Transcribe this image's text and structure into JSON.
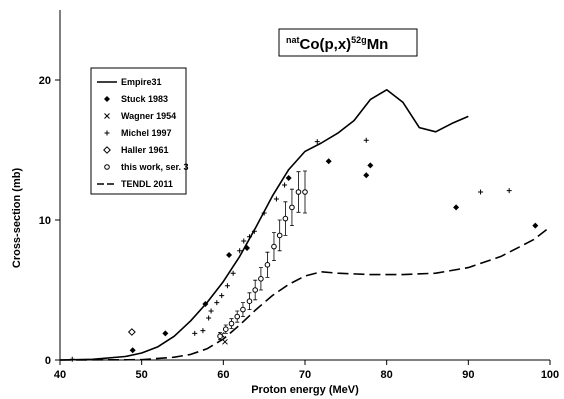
{
  "chart_data": {
    "type": "scatter",
    "title_prefix": "nat",
    "title_main1": "Co(p,x)",
    "title_sup2": "52g",
    "title_main2": "Mn",
    "xlabel": "Proton energy (MeV)",
    "ylabel": "Cross-section (mb)",
    "xlim": [
      40,
      100
    ],
    "ylim": [
      0,
      25
    ],
    "xticks": [
      40,
      50,
      60,
      70,
      80,
      90,
      100
    ],
    "yticks": [
      0,
      10,
      20
    ],
    "legend_position": "top-left",
    "series": [
      {
        "name": "Empire31",
        "style": "solid-line",
        "x": [
          40,
          44,
          48,
          50,
          52,
          54,
          56,
          58,
          60,
          62,
          64,
          66,
          68,
          70,
          72,
          74,
          76,
          78,
          80,
          82,
          84,
          86,
          88,
          90
        ],
        "y": [
          0.0,
          0.05,
          0.25,
          0.5,
          0.95,
          1.7,
          2.8,
          4.1,
          5.6,
          7.4,
          9.5,
          11.7,
          13.6,
          14.9,
          15.5,
          16.2,
          17.1,
          18.6,
          19.3,
          18.4,
          16.6,
          16.3,
          16.9,
          17.4
        ]
      },
      {
        "name": "TENDL 2011",
        "style": "dashed-line",
        "x": [
          40,
          50,
          54,
          56,
          58,
          60,
          62,
          64,
          66,
          68,
          70,
          72,
          74,
          78,
          82,
          86,
          90,
          94,
          98,
          100
        ],
        "y": [
          0.0,
          0.02,
          0.2,
          0.4,
          0.8,
          1.5,
          2.5,
          3.6,
          4.6,
          5.4,
          6.0,
          6.3,
          6.2,
          6.1,
          6.1,
          6.2,
          6.6,
          7.4,
          8.6,
          9.5
        ]
      },
      {
        "name": "Stuck 1983",
        "marker": "diamond-filled",
        "x": [
          48.9,
          52.9,
          57.8,
          60.7,
          62.9,
          68.0,
          72.9,
          77.5,
          78.0,
          88.5,
          98.2
        ],
        "y": [
          0.7,
          1.9,
          4.0,
          7.5,
          8.0,
          13.0,
          14.2,
          13.2,
          13.9,
          10.9,
          9.6
        ]
      },
      {
        "name": "Wagner 1954",
        "marker": "cross-x",
        "x": [
          59.8,
          60.2
        ],
        "y": [
          1.8,
          1.3
        ]
      },
      {
        "name": "Michel 1997",
        "marker": "plus",
        "x": [
          41.5,
          56.5,
          57.5,
          58.2,
          58.5,
          59.2,
          59.8,
          60.5,
          61.2,
          62.0,
          62.5,
          63.2,
          63.8,
          65.0,
          66.5,
          67.5,
          71.5,
          77.5,
          91.5,
          95.0
        ],
        "y": [
          0.05,
          1.9,
          2.1,
          3.0,
          3.5,
          4.1,
          4.6,
          5.3,
          6.2,
          7.8,
          8.5,
          8.8,
          9.2,
          10.5,
          11.5,
          12.5,
          15.6,
          15.7,
          12.0,
          12.1
        ]
      },
      {
        "name": "Haller 1961",
        "marker": "diamond-open",
        "x": [
          48.8
        ],
        "y": [
          2.0
        ]
      },
      {
        "name": "this work, ser. 3",
        "marker": "circle-open",
        "x": [
          59.6,
          60.3,
          61.0,
          61.7,
          62.4,
          63.2,
          63.9,
          64.6,
          65.4,
          66.2,
          66.9,
          67.6,
          68.4,
          69.2,
          70.0
        ],
        "y": [
          1.7,
          2.2,
          2.6,
          3.1,
          3.6,
          4.2,
          5.0,
          5.8,
          6.8,
          8.1,
          8.9,
          10.1,
          10.9,
          12.0,
          12.0
        ],
        "yerr": [
          0.25,
          0.3,
          0.35,
          0.4,
          0.5,
          0.6,
          0.7,
          0.8,
          0.9,
          1.0,
          1.1,
          1.2,
          1.3,
          1.45,
          1.5
        ]
      }
    ]
  }
}
